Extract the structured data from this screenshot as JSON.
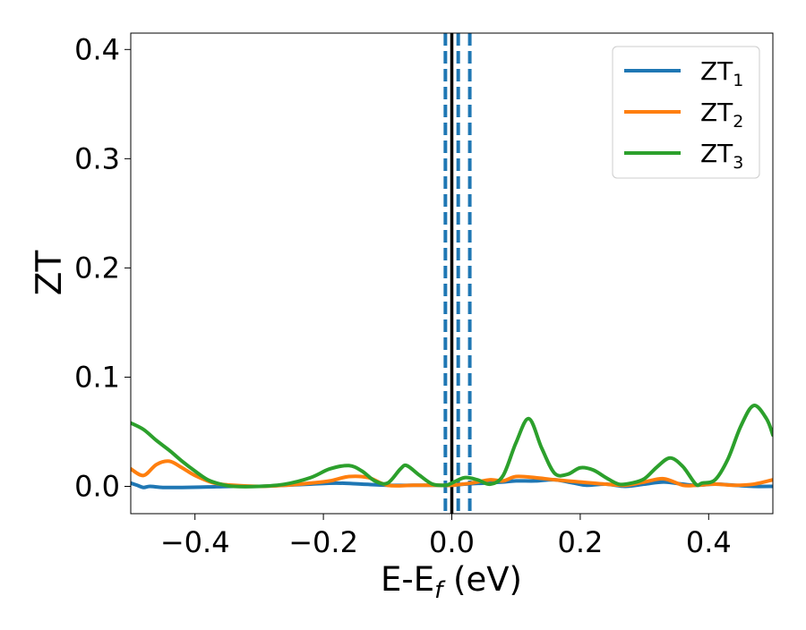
{
  "chart_data": {
    "type": "line",
    "xlabel_main": "E-E",
    "xlabel_sub": "f",
    "xlabel_unit": " (eV)",
    "ylabel": "ZT",
    "xlim": [
      -0.5,
      0.5
    ],
    "ylim": [
      -0.025,
      0.415
    ],
    "xticks": [
      -0.4,
      -0.2,
      0.0,
      0.2,
      0.4
    ],
    "xtick_labels": [
      "−0.4",
      "−0.2",
      "0.0",
      "0.2",
      "0.4"
    ],
    "yticks": [
      0.0,
      0.1,
      0.2,
      0.3,
      0.4
    ],
    "ytick_labels": [
      "0.0",
      "0.1",
      "0.2",
      "0.3",
      "0.4"
    ],
    "grid": false,
    "legend_position": "top-right",
    "vlines": [
      {
        "x": -0.01,
        "style": "dashed",
        "color": "#1f77b4"
      },
      {
        "x": 0.01,
        "style": "dashed",
        "color": "#1f77b4"
      },
      {
        "x": 0.028,
        "style": "dashed",
        "color": "#1f77b4"
      },
      {
        "x": 0.0,
        "style": "solid",
        "color": "#000000"
      }
    ],
    "series": [
      {
        "name": "ZT",
        "sub": "1",
        "color": "#1f77b4",
        "x": [
          -0.5,
          -0.49,
          -0.48,
          -0.47,
          -0.45,
          -0.42,
          -0.38,
          -0.34,
          -0.3,
          -0.26,
          -0.22,
          -0.18,
          -0.14,
          -0.1,
          -0.06,
          -0.02,
          0.0,
          0.02,
          0.05,
          0.08,
          0.1,
          0.13,
          0.16,
          0.19,
          0.21,
          0.24,
          0.27,
          0.3,
          0.33,
          0.36,
          0.38,
          0.41,
          0.44,
          0.47,
          0.5
        ],
        "values": [
          0.003,
          0.001,
          -0.001,
          0.0,
          -0.001,
          -0.001,
          -0.0005,
          0.0,
          0.0,
          0.001,
          0.002,
          0.003,
          0.002,
          0.001,
          0.001,
          0.001,
          0.001,
          0.002,
          0.003,
          0.004,
          0.005,
          0.005,
          0.006,
          0.003,
          0.001,
          0.002,
          0.0,
          0.002,
          0.004,
          0.002,
          0.001,
          0.002,
          0.001,
          0.0,
          0.0
        ]
      },
      {
        "name": "ZT",
        "sub": "2",
        "color": "#ff7f0e",
        "x": [
          -0.5,
          -0.48,
          -0.46,
          -0.44,
          -0.42,
          -0.4,
          -0.37,
          -0.34,
          -0.3,
          -0.26,
          -0.22,
          -0.19,
          -0.16,
          -0.13,
          -0.1,
          -0.06,
          -0.02,
          0.0,
          0.03,
          0.06,
          0.08,
          0.1,
          0.13,
          0.16,
          0.2,
          0.24,
          0.27,
          0.3,
          0.33,
          0.36,
          0.38,
          0.41,
          0.44,
          0.47,
          0.5
        ],
        "values": [
          0.016,
          0.01,
          0.02,
          0.023,
          0.017,
          0.01,
          0.003,
          0.001,
          0.0,
          0.001,
          0.003,
          0.005,
          0.009,
          0.008,
          0.001,
          0.001,
          0.001,
          0.001,
          0.003,
          0.006,
          0.005,
          0.009,
          0.008,
          0.006,
          0.004,
          0.002,
          0.001,
          0.004,
          0.007,
          0.001,
          0.001,
          0.002,
          0.001,
          0.002,
          0.006
        ]
      },
      {
        "name": "ZT",
        "sub": "3",
        "color": "#2ca02c",
        "x": [
          -0.5,
          -0.48,
          -0.46,
          -0.44,
          -0.42,
          -0.4,
          -0.38,
          -0.36,
          -0.34,
          -0.3,
          -0.26,
          -0.22,
          -0.19,
          -0.16,
          -0.14,
          -0.12,
          -0.1,
          -0.08,
          -0.07,
          -0.05,
          -0.03,
          -0.01,
          0.0,
          0.02,
          0.04,
          0.06,
          0.08,
          0.1,
          0.12,
          0.14,
          0.16,
          0.18,
          0.2,
          0.22,
          0.24,
          0.26,
          0.28,
          0.3,
          0.32,
          0.34,
          0.36,
          0.38,
          0.39,
          0.41,
          0.43,
          0.45,
          0.47,
          0.49,
          0.5
        ],
        "values": [
          0.058,
          0.052,
          0.042,
          0.033,
          0.023,
          0.014,
          0.006,
          0.002,
          0.0,
          0.0,
          0.002,
          0.008,
          0.016,
          0.019,
          0.014,
          0.005,
          0.003,
          0.016,
          0.019,
          0.01,
          0.002,
          0.001,
          0.003,
          0.008,
          0.006,
          0.002,
          0.01,
          0.04,
          0.062,
          0.035,
          0.012,
          0.011,
          0.017,
          0.015,
          0.008,
          0.002,
          0.003,
          0.007,
          0.018,
          0.026,
          0.018,
          0.002,
          0.003,
          0.006,
          0.025,
          0.055,
          0.074,
          0.062,
          0.047
        ]
      }
    ]
  }
}
